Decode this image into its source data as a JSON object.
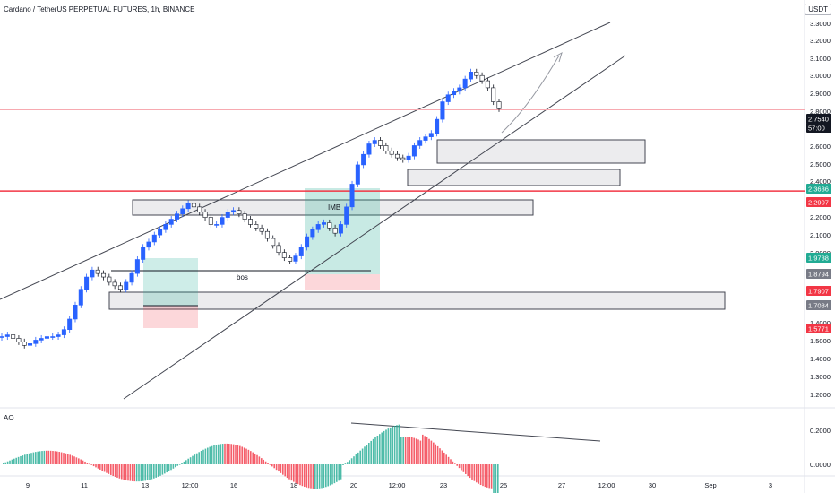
{
  "header": {
    "title": "Cardano / TetherUS PERPETUAL FUTURES, 1h, BINANCE",
    "currency_badge": "USDT"
  },
  "indicator": {
    "label": "AO"
  },
  "annotations": {
    "bos": "bos",
    "imb": "IMB"
  },
  "price_badges": [
    {
      "value": "2.7540",
      "bg": "#131722",
      "fg": "#ffffff"
    },
    {
      "value": "57:00",
      "bg": "#131722",
      "fg": "#ffffff"
    },
    {
      "value": "2.3636",
      "bg": "#22ab94",
      "fg": "#ffffff"
    },
    {
      "value": "2.2907",
      "bg": "#f23645",
      "fg": "#ffffff"
    },
    {
      "value": "1.9738",
      "bg": "#22ab94",
      "fg": "#ffffff"
    },
    {
      "value": "1.8794",
      "bg": "#787b86",
      "fg": "#ffffff"
    },
    {
      "value": "1.7907",
      "bg": "#f23645",
      "fg": "#ffffff"
    },
    {
      "value": "1.7084",
      "bg": "#787b86",
      "fg": "#ffffff"
    },
    {
      "value": "1.5771",
      "bg": "#f23645",
      "fg": "#ffffff"
    }
  ],
  "chart_data": {
    "type": "line",
    "x_ticks": [
      "9",
      "11",
      "13",
      "12:00",
      "16",
      "18",
      "20",
      "12:00",
      "23",
      "25",
      "27",
      "12:00",
      "30",
      "Sep",
      "3"
    ],
    "price_ticks": [
      "3.3000",
      "3.2000",
      "3.1000",
      "3.0000",
      "2.9000",
      "2.8000",
      "2.6000",
      "2.5000",
      "2.4000",
      "2.2000",
      "2.1000",
      "2.0000",
      "1.4000",
      "1.5000",
      "1.4000",
      "1.3000",
      "1.2000"
    ],
    "ao_ticks": [
      "0.2000",
      "0.0000"
    ],
    "ylim": [
      1.15,
      3.38
    ],
    "horizontal_lines": [
      {
        "value": 2.754,
        "color": "#f7a9b0"
      },
      {
        "value": 2.2907,
        "color": "#f23645"
      }
    ],
    "series": [
      {
        "values": [
          1.46,
          1.47,
          1.45,
          1.43,
          1.41,
          1.42,
          1.44,
          1.45,
          1.46,
          1.46,
          1.47,
          1.5,
          1.56,
          1.64,
          1.73,
          1.8,
          1.84,
          1.82,
          1.8,
          1.77,
          1.75,
          1.73,
          1.77,
          1.82,
          1.9,
          1.97,
          2.0,
          2.04,
          2.07,
          2.1,
          2.13,
          2.16,
          2.19,
          2.22,
          2.2,
          2.17,
          2.14,
          2.1,
          2.1,
          2.14,
          2.17,
          2.18,
          2.16,
          2.13,
          2.1,
          2.08,
          2.06,
          2.02,
          1.98,
          1.94,
          1.91,
          1.89,
          1.92,
          1.97,
          2.03,
          2.07,
          2.1,
          2.11,
          2.08,
          2.05,
          2.1,
          2.2,
          2.33,
          2.44,
          2.5,
          2.56,
          2.58,
          2.55,
          2.52,
          2.5,
          2.48,
          2.47,
          2.49,
          2.55,
          2.58,
          2.6,
          2.62,
          2.7,
          2.8,
          2.84,
          2.86,
          2.88,
          2.93,
          2.97,
          2.95,
          2.92,
          2.88,
          2.8,
          2.76
        ]
      }
    ]
  }
}
